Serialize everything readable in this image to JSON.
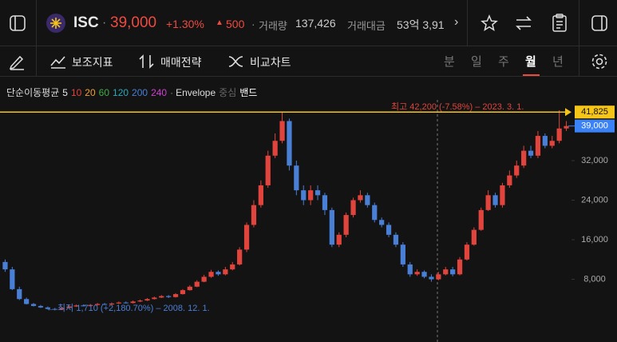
{
  "header": {
    "symbol": "ISC",
    "price": "39,000",
    "change_pct": "+1.30%",
    "change": "500",
    "volume_label": "거래량",
    "volume": "137,426",
    "amount_label": "거래대금",
    "amount": "53억 3,91"
  },
  "toolbar": {
    "indicators": "보조지표",
    "strategy": "매매전략",
    "compare": "비교차트",
    "periods": [
      "분",
      "일",
      "주",
      "월",
      "년"
    ],
    "selected_period": 3
  },
  "indicator_bar": {
    "name": "단순이동평균",
    "periods": [
      5,
      10,
      20,
      60,
      120,
      200,
      240
    ],
    "colors": [
      "#e6e6e6",
      "#e0443c",
      "#f0a030",
      "#3fae49",
      "#2aa9b8",
      "#4a7fd6",
      "#d03fd0"
    ],
    "envelope": "Envelope",
    "center": "중심",
    "band": "밴드"
  },
  "chart_data": {
    "type": "candlestick",
    "open": [
      11500,
      10000,
      6000,
      4000,
      3000,
      2600,
      2300,
      2000,
      1900,
      2200,
      2500,
      2700,
      2600,
      2800,
      3000,
      2900,
      3100,
      3300,
      3200,
      3500,
      3700,
      4000,
      4300,
      4600,
      4400,
      5000,
      5800,
      6500,
      7500,
      8500,
      9500,
      9000,
      10000,
      11000,
      14000,
      19000,
      23000,
      27000,
      33000,
      36000,
      40000,
      31000,
      26000,
      24000,
      26000,
      25000,
      22000,
      15000,
      17000,
      21000,
      24000,
      25000,
      23000,
      20000,
      19000,
      17000,
      15000,
      11000,
      9000,
      9500,
      8500,
      8000,
      9000,
      10000,
      9000,
      12000,
      15000,
      18000,
      22000,
      25000,
      23000,
      27000,
      29000,
      31000,
      34000,
      33000,
      37000,
      35000,
      36000,
      38500
    ],
    "high": [
      12000,
      10500,
      6500,
      4300,
      3200,
      2800,
      2500,
      2200,
      2400,
      2700,
      2900,
      2900,
      3000,
      3200,
      3200,
      3300,
      3500,
      3500,
      3700,
      3900,
      4200,
      4500,
      4800,
      4800,
      5200,
      6000,
      6800,
      7800,
      8900,
      9900,
      9800,
      10500,
      11500,
      14500,
      19500,
      24000,
      28000,
      34000,
      37500,
      41800,
      40500,
      32000,
      27000,
      27000,
      27000,
      25500,
      22500,
      17500,
      21500,
      24500,
      26000,
      25500,
      23500,
      20500,
      19500,
      17500,
      15500,
      11500,
      10000,
      9800,
      9000,
      9500,
      10500,
      10500,
      12500,
      15500,
      18500,
      22500,
      26000,
      25500,
      27500,
      30000,
      32000,
      35000,
      35000,
      38000,
      37500,
      37000,
      42200,
      40000
    ],
    "low": [
      9500,
      5800,
      3800,
      2900,
      2500,
      2200,
      1900,
      1710,
      1800,
      2100,
      2400,
      2500,
      2500,
      2700,
      2800,
      2800,
      3000,
      3100,
      3100,
      3400,
      3600,
      3900,
      4200,
      4200,
      4300,
      4900,
      5700,
      6400,
      7400,
      8300,
      8700,
      8800,
      9800,
      10800,
      13500,
      18500,
      22500,
      26500,
      32500,
      35500,
      30000,
      25000,
      23000,
      23000,
      24000,
      21000,
      14500,
      14500,
      16500,
      20500,
      23500,
      22500,
      19500,
      18500,
      16500,
      14500,
      10500,
      8500,
      8700,
      8200,
      7500,
      7800,
      8800,
      8600,
      8800,
      11800,
      14800,
      17800,
      21800,
      22500,
      22500,
      26500,
      28500,
      30500,
      32500,
      32500,
      34500,
      34500,
      35500,
      38000
    ],
    "close": [
      10000,
      6000,
      4000,
      3000,
      2600,
      2300,
      2000,
      1900,
      2200,
      2500,
      2700,
      2600,
      2800,
      3000,
      2900,
      3100,
      3300,
      3200,
      3500,
      3700,
      4000,
      4300,
      4600,
      4400,
      5000,
      5800,
      6500,
      7500,
      8500,
      9500,
      9000,
      10000,
      11000,
      14000,
      19000,
      23000,
      27000,
      33000,
      36000,
      40000,
      31000,
      26000,
      24000,
      26000,
      25000,
      22000,
      15000,
      17000,
      21000,
      24000,
      25000,
      23000,
      20000,
      19000,
      17000,
      15000,
      11000,
      9000,
      9500,
      8500,
      8000,
      9000,
      10000,
      9000,
      12000,
      15000,
      18000,
      22000,
      25000,
      23000,
      27000,
      29000,
      31000,
      34000,
      33000,
      37000,
      35000,
      36000,
      38500,
      39000
    ],
    "up_color": "#e0443c",
    "down_color": "#4a7fd6",
    "ylim": [
      -4687,
      44283
    ],
    "yticks": [
      {
        "value": 8000,
        "label": "8,000"
      },
      {
        "value": 16000,
        "label": "16,000"
      },
      {
        "value": 24000,
        "label": "24,000"
      },
      {
        "value": 32000,
        "label": "32,000"
      }
    ],
    "high_line": {
      "value": 41825,
      "label": "41,825"
    },
    "current": {
      "value": 39000,
      "label": "39,000"
    },
    "max_note": "최고 42,200 (-7.58%) – 2023. 3. 1.",
    "min_note": "← 최저 1,710 (+2,180.70%) – 2008. 12. 1."
  }
}
